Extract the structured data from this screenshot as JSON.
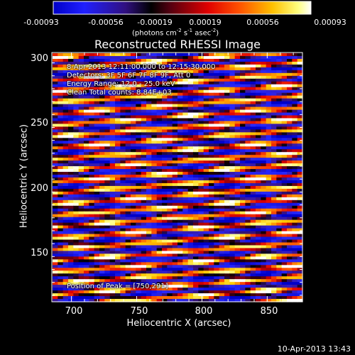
{
  "colorbar": {
    "ticks": [
      "-0.00093",
      "-0.00056",
      "-0.00019",
      "0.00019",
      "0.00056",
      "0.00093"
    ],
    "units_main": "(photons cm",
    "units_exp1": "-2",
    "units_mid1": " s",
    "units_exp2": "-1",
    "units_mid2": " asec",
    "units_exp3": "-2",
    "units_end": ")"
  },
  "title": "Reconstructed RHESSI Image",
  "annotations": {
    "time": "8-Apr-2013 12:11:00.000 to 12:15:30.000",
    "detectors": "Detectors: 3F 5F 6F 7F 8F 9F, Att 0",
    "energy": "Energy Range: 12.0 - 25.0 keV",
    "clean": "Clean     Total counts: 8.84E+03",
    "peak": "Position of Peak = [750,291]"
  },
  "timestamp": "10-Apr-2013 13:43",
  "colors": {
    "background": "#000000",
    "colortable": [
      "#0000ff",
      "#000000",
      "#e00000",
      "#ffd000",
      "#ffffff"
    ]
  },
  "chart_data": {
    "type": "heatmap",
    "title": "Reconstructed RHESSI Image",
    "xlabel": "Heliocentric X (arcsec)",
    "ylabel": "Heliocentric Y (arcsec)",
    "xlim": [
      685,
      877
    ],
    "ylim": [
      110,
      303
    ],
    "xticks": [
      "700",
      "750",
      "800",
      "850"
    ],
    "yticks": [
      "150",
      "200",
      "250",
      "300"
    ],
    "colorbar_range": [
      -0.00093,
      0.00093
    ],
    "peak_position": [
      750,
      291
    ],
    "description_values": "Image shows fringe-like diagonal stripes spanning the full field of view; values range from -0.00093 to 0.00093 photons cm^-2 s^-1 asec^-2"
  }
}
